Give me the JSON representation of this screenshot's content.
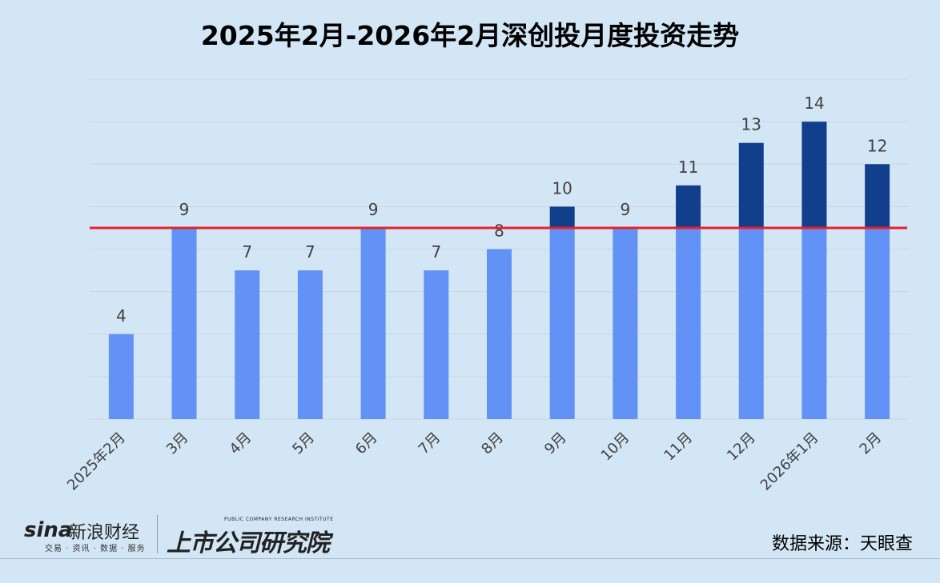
{
  "chart_data": {
    "type": "bar",
    "title": "2025年2月-2026年2月深创投月度投资走势",
    "categories": [
      "2025年2月",
      "3月",
      "4月",
      "5月",
      "6月",
      "7月",
      "8月",
      "9月",
      "10月",
      "11月",
      "12月",
      "2026年1月",
      "2月"
    ],
    "values": [
      4,
      9,
      7,
      7,
      9,
      7,
      8,
      10,
      9,
      11,
      13,
      14,
      12
    ],
    "ylim": [
      0,
      16
    ],
    "grid": true,
    "reference_line": 9,
    "colors": {
      "bar": "#6292f5",
      "above_reference": "#123f8c",
      "reference_line": "#e8202a",
      "grid": "#c9d6e2",
      "label": "#404040"
    }
  },
  "footer": {
    "source": "数据来源：天眼查",
    "logo_sina": "sina",
    "logo_sina_cn": "新浪财经",
    "logo_sina_sub": "交易 · 资讯 · 数据 · 服务",
    "logo_institute_cn": "上市公司研究院",
    "logo_institute_en": "PUBLIC COMPANY RESEARCH INSTITUTE"
  }
}
